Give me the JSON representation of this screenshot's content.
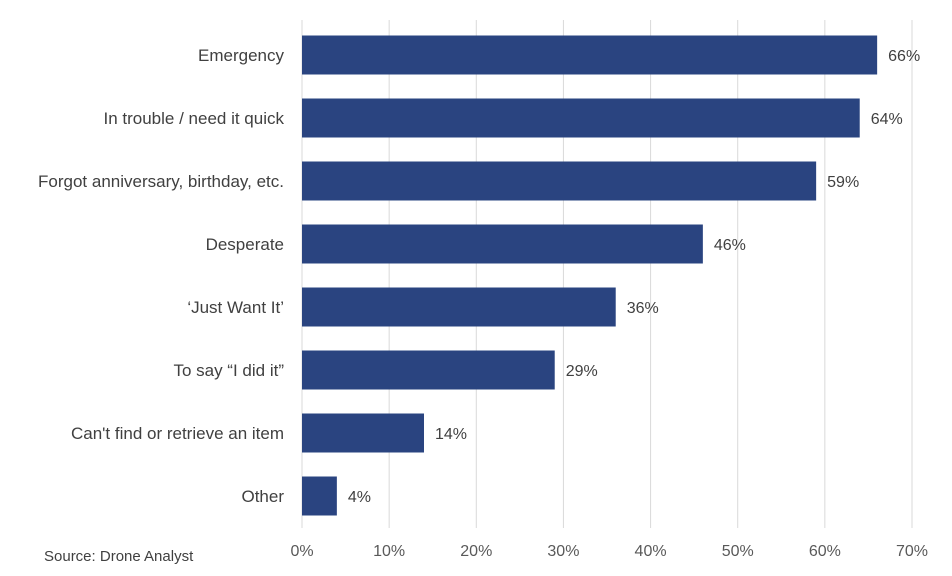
{
  "chart_data": {
    "type": "bar",
    "orientation": "horizontal",
    "categories": [
      "Emergency",
      "In trouble / need it quick",
      "Forgot anniversary, birthday, etc.",
      "Desperate",
      "‘Just Want It’",
      "To say “I did it”",
      "Can't find or retrieve an item",
      "Other"
    ],
    "values": [
      66,
      64,
      59,
      46,
      36,
      29,
      14,
      4
    ],
    "value_labels": [
      "66%",
      "64%",
      "59%",
      "46%",
      "36%",
      "29%",
      "14%",
      "4%"
    ],
    "x_ticks": [
      "0%",
      "10%",
      "20%",
      "30%",
      "40%",
      "50%",
      "60%",
      "70%"
    ],
    "xlim": [
      0,
      70
    ],
    "unit": "%",
    "grid": "vertical",
    "bar_color": "#2a4480",
    "grid_color": "#d9d9d9",
    "source": "Source: Drone Analyst"
  }
}
